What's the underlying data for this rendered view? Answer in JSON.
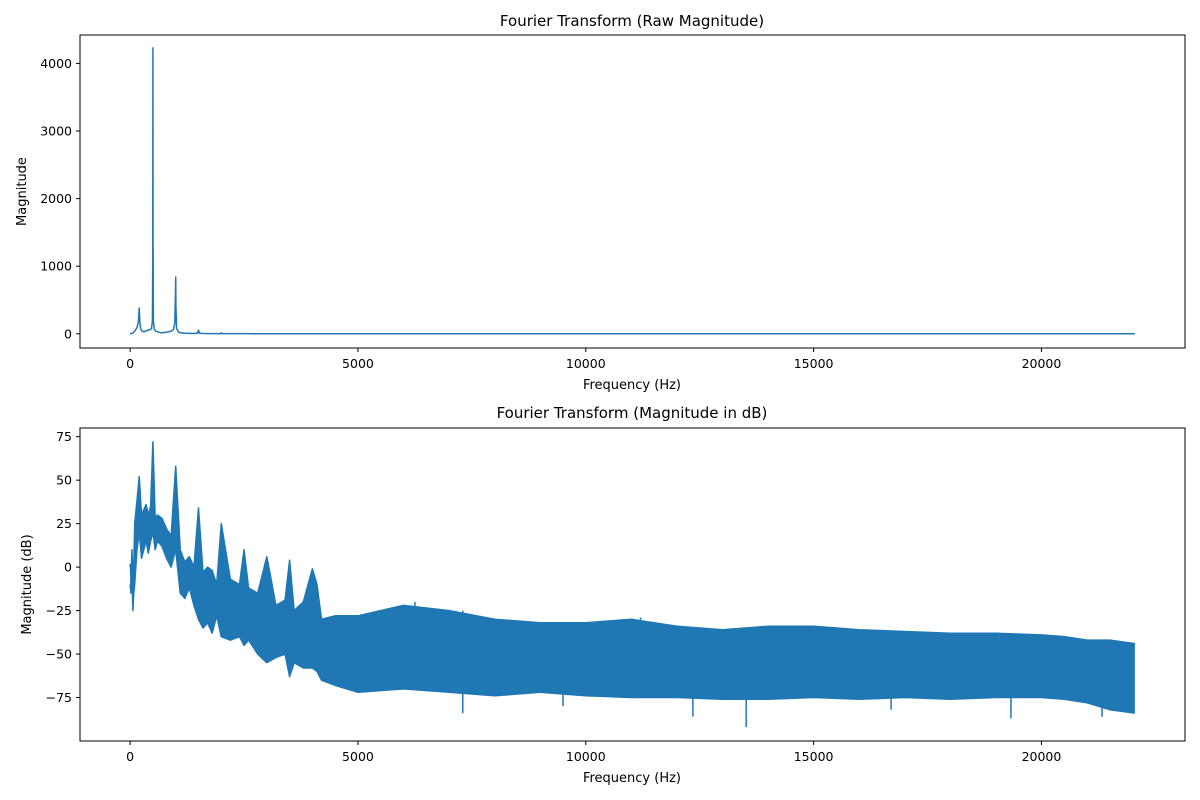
{
  "chart_data": [
    {
      "type": "line",
      "title": "Fourier Transform (Raw Magnitude)",
      "xlabel": "Frequency (Hz)",
      "ylabel": "Magnitude",
      "xlim": [
        -1100,
        23150
      ],
      "ylim": [
        -210,
        4420
      ],
      "x_ticks": [
        0,
        5000,
        10000,
        15000,
        20000
      ],
      "x_tick_labels": [
        "0",
        "5000",
        "10000",
        "15000",
        "20000"
      ],
      "y_ticks": [
        0,
        1000,
        2000,
        3000,
        4000
      ],
      "y_tick_labels": [
        "0",
        "1000",
        "2000",
        "3000",
        "4000"
      ],
      "grid": false,
      "series": [
        {
          "color": "#1f77b4",
          "x": [
            0,
            30,
            60,
            90,
            120,
            150,
            180,
            200,
            210,
            220,
            240,
            260,
            300,
            350,
            400,
            440,
            470,
            490,
            497,
            500,
            503,
            510,
            530,
            560,
            600,
            650,
            700,
            750,
            800,
            850,
            900,
            950,
            980,
            995,
            1000,
            1005,
            1020,
            1060,
            1100,
            1200,
            1300,
            1400,
            1480,
            1500,
            1520,
            1600,
            1800,
            1990,
            2000,
            2010,
            2200,
            2500,
            3000,
            3500,
            4000,
            5000,
            7500,
            10000,
            12500,
            15000,
            17500,
            20000,
            22050
          ],
          "y": [
            0,
            5,
            10,
            30,
            60,
            90,
            170,
            380,
            220,
            120,
            60,
            40,
            30,
            45,
            55,
            60,
            80,
            200,
            1200,
            4230,
            1500,
            200,
            70,
            40,
            30,
            20,
            15,
            20,
            25,
            30,
            40,
            60,
            150,
            600,
            840,
            400,
            80,
            30,
            15,
            8,
            6,
            5,
            10,
            55,
            10,
            4,
            3,
            3,
            15,
            3,
            2,
            2,
            1,
            1,
            1,
            0,
            0,
            0,
            0,
            0,
            0,
            0,
            0
          ]
        }
      ]
    },
    {
      "type": "line",
      "title": "Fourier Transform (Magnitude in dB)",
      "xlabel": "Frequency (Hz)",
      "ylabel": "Magnitude (dB)",
      "xlim": [
        -1100,
        23150
      ],
      "ylim": [
        -100,
        80
      ],
      "x_ticks": [
        0,
        5000,
        10000,
        15000,
        20000
      ],
      "x_tick_labels": [
        "0",
        "5000",
        "10000",
        "15000",
        "20000"
      ],
      "y_ticks": [
        -75,
        -50,
        -25,
        0,
        25,
        50,
        75
      ],
      "y_tick_labels": [
        "−75",
        "−50",
        "−25",
        "0",
        "25",
        "50",
        "75"
      ],
      "grid": false,
      "series": [
        {
          "color": "#1f77b4",
          "x": [
            0,
            20,
            40,
            60,
            80,
            100,
            150,
            200,
            250,
            300,
            350,
            400,
            450,
            500,
            550,
            600,
            700,
            800,
            900,
            1000,
            1100,
            1200,
            1300,
            1400,
            1500,
            1600,
            1700,
            1800,
            1900,
            2000,
            2200,
            2400,
            2500,
            2600,
            2800,
            3000,
            3200,
            3400,
            3500,
            3600,
            3800,
            4000,
            4100,
            4200,
            4500,
            5000,
            6000,
            7000,
            8000,
            9000,
            10000,
            11000,
            12000,
            13000,
            14000,
            15000,
            16000,
            17000,
            18000,
            19000,
            20000,
            20500,
            21000,
            21500,
            22050
          ],
          "y_upper": [
            2,
            -5,
            10,
            -5,
            0,
            25,
            38,
            52,
            30,
            33,
            36,
            30,
            35,
            72,
            28,
            30,
            28,
            22,
            18,
            58,
            10,
            3,
            6,
            0,
            34,
            -3,
            0,
            -2,
            -10,
            25,
            -7,
            -10,
            10,
            -12,
            -15,
            6,
            -22,
            -19,
            4,
            -25,
            -20,
            -1,
            -10,
            -30,
            -28,
            -28,
            -22,
            -25,
            -30,
            -32,
            -32,
            -30,
            -34,
            -36,
            -34,
            -34,
            -36,
            -37,
            -38,
            -38,
            -39,
            -40,
            -42,
            -42,
            -44
          ],
          "y_lower": [
            -10,
            -15,
            -5,
            -25,
            -15,
            -10,
            10,
            20,
            5,
            10,
            15,
            8,
            15,
            20,
            10,
            15,
            12,
            5,
            0,
            10,
            -15,
            -18,
            -12,
            -22,
            -30,
            -35,
            -32,
            -38,
            -28,
            -40,
            -42,
            -40,
            -45,
            -42,
            -50,
            -55,
            -52,
            -50,
            -63,
            -55,
            -58,
            -58,
            -60,
            -65,
            -68,
            -72,
            -70,
            -72,
            -74,
            -72,
            -74,
            -75,
            -75,
            -76,
            -76,
            -75,
            -76,
            -75,
            -76,
            -75,
            -75,
            -76,
            -78,
            -82,
            -84
          ],
          "spikes_up": [
            [
              6250,
              -20
            ],
            [
              7300,
              -25
            ],
            [
              11200,
              -29
            ],
            [
              15150,
              -36
            ]
          ],
          "spikes_down": [
            [
              7300,
              -84
            ],
            [
              9500,
              -80
            ],
            [
              12350,
              -86
            ],
            [
              13520,
              -92
            ],
            [
              16700,
              -82
            ],
            [
              19330,
              -87
            ],
            [
              21330,
              -86
            ],
            [
              21900,
              -83
            ]
          ]
        }
      ]
    }
  ]
}
